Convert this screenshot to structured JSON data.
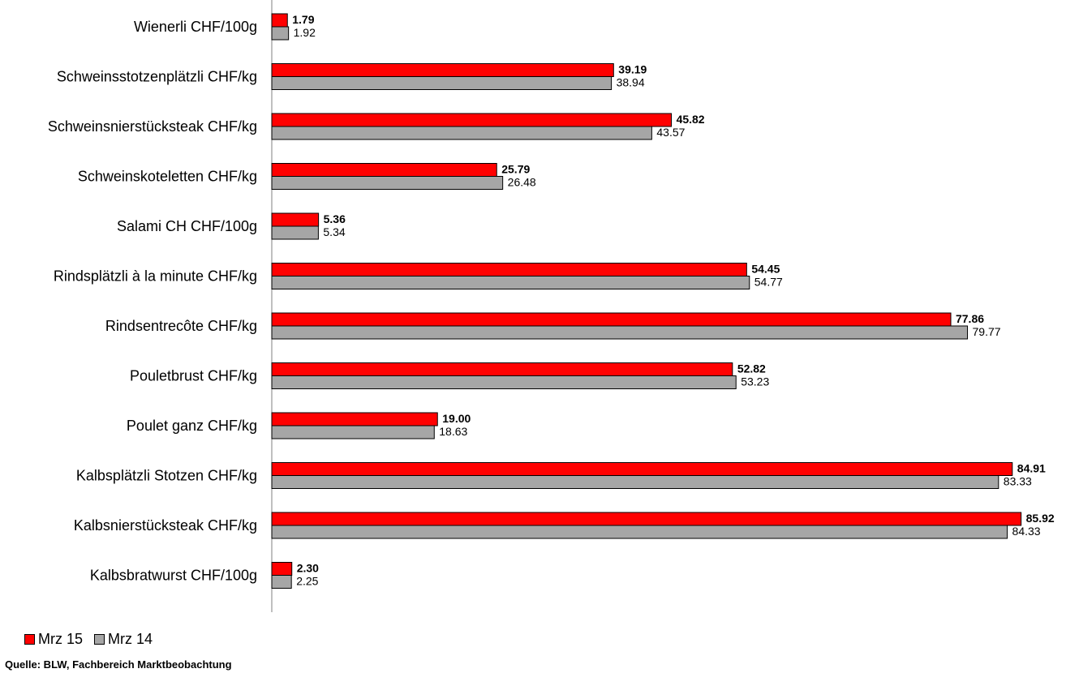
{
  "chart_data": {
    "type": "bar",
    "orientation": "horizontal",
    "categories": [
      "Wienerli CHF/100g",
      "Schweinsstotzenplätzli CHF/kg",
      "Schweinsnierstücksteak CHF/kg",
      "Schweinskoteletten CHF/kg",
      "Salami CH CHF/100g",
      "Rindsplätzli à la minute CHF/kg",
      "Rindsentrecôte CHF/kg",
      "Pouletbrust CHF/kg",
      "Poulet ganz CHF/kg",
      "Kalbsplätzli Stotzen CHF/kg",
      "Kalbsnierstücksteak CHF/kg",
      "Kalbsbratwurst CHF/100g"
    ],
    "series": [
      {
        "name": "Mrz 15",
        "color": "#ff0000",
        "values": [
          1.79,
          39.19,
          45.82,
          25.79,
          5.36,
          54.45,
          77.86,
          52.82,
          19.0,
          84.91,
          85.92,
          2.3
        ],
        "labels": [
          "1.79",
          "39.19",
          "45.82",
          "25.79",
          "5.36",
          "54.45",
          "77.86",
          "52.82",
          "19.00",
          "84.91",
          "85.92",
          "2.30"
        ]
      },
      {
        "name": "Mrz 14",
        "color": "#a6a6a6",
        "values": [
          1.92,
          38.94,
          43.57,
          26.48,
          5.34,
          54.77,
          79.77,
          53.23,
          18.63,
          83.33,
          84.33,
          2.25
        ],
        "labels": [
          "1.92",
          "38.94",
          "43.57",
          "26.48",
          "5.34",
          "54.77",
          "79.77",
          "53.23",
          "18.63",
          "83.33",
          "84.33",
          "2.25"
        ]
      }
    ],
    "xlim": [
      0,
      92
    ],
    "grid": false,
    "legend_position": "bottom-left",
    "source": "Quelle: BLW, Fachbereich Marktbeobachtung"
  }
}
